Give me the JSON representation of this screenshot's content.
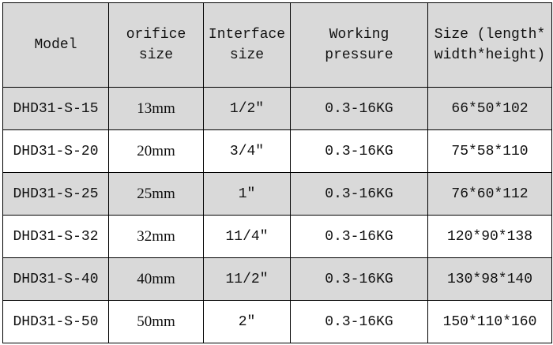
{
  "colors": {
    "header_bg": "#d9d9d9",
    "alt_row_bg": "#d9d9d9",
    "border": "#000000"
  },
  "headers": [
    {
      "line1": "Model",
      "line2": ""
    },
    {
      "line1": "orifice",
      "line2": "size"
    },
    {
      "line1": "Interface",
      "line2": "size"
    },
    {
      "line1": "Working",
      "line2": "pressure"
    },
    {
      "line1": "Size (length*",
      "line2": "width*height)"
    }
  ],
  "rows": [
    {
      "model": "DHD31-S-15",
      "orifice": "13mm",
      "interface": "1/2″",
      "pressure": "0.3-16KG",
      "size": "66*50*102"
    },
    {
      "model": "DHD31-S-20",
      "orifice": "20mm",
      "interface": "3/4″",
      "pressure": "0.3-16KG",
      "size": "75*58*110"
    },
    {
      "model": "DHD31-S-25",
      "orifice": "25mm",
      "interface": "1″",
      "pressure": "0.3-16KG",
      "size": "76*60*112"
    },
    {
      "model": "DHD31-S-32",
      "orifice": "32mm",
      "interface": "11/4″",
      "pressure": "0.3-16KG",
      "size": "120*90*138"
    },
    {
      "model": "DHD31-S-40",
      "orifice": "40mm",
      "interface": "11/2″",
      "pressure": "0.3-16KG",
      "size": "130*98*140"
    },
    {
      "model": "DHD31-S-50",
      "orifice": "50mm",
      "interface": "2″",
      "pressure": "0.3-16KG",
      "size": "150*110*160"
    }
  ]
}
